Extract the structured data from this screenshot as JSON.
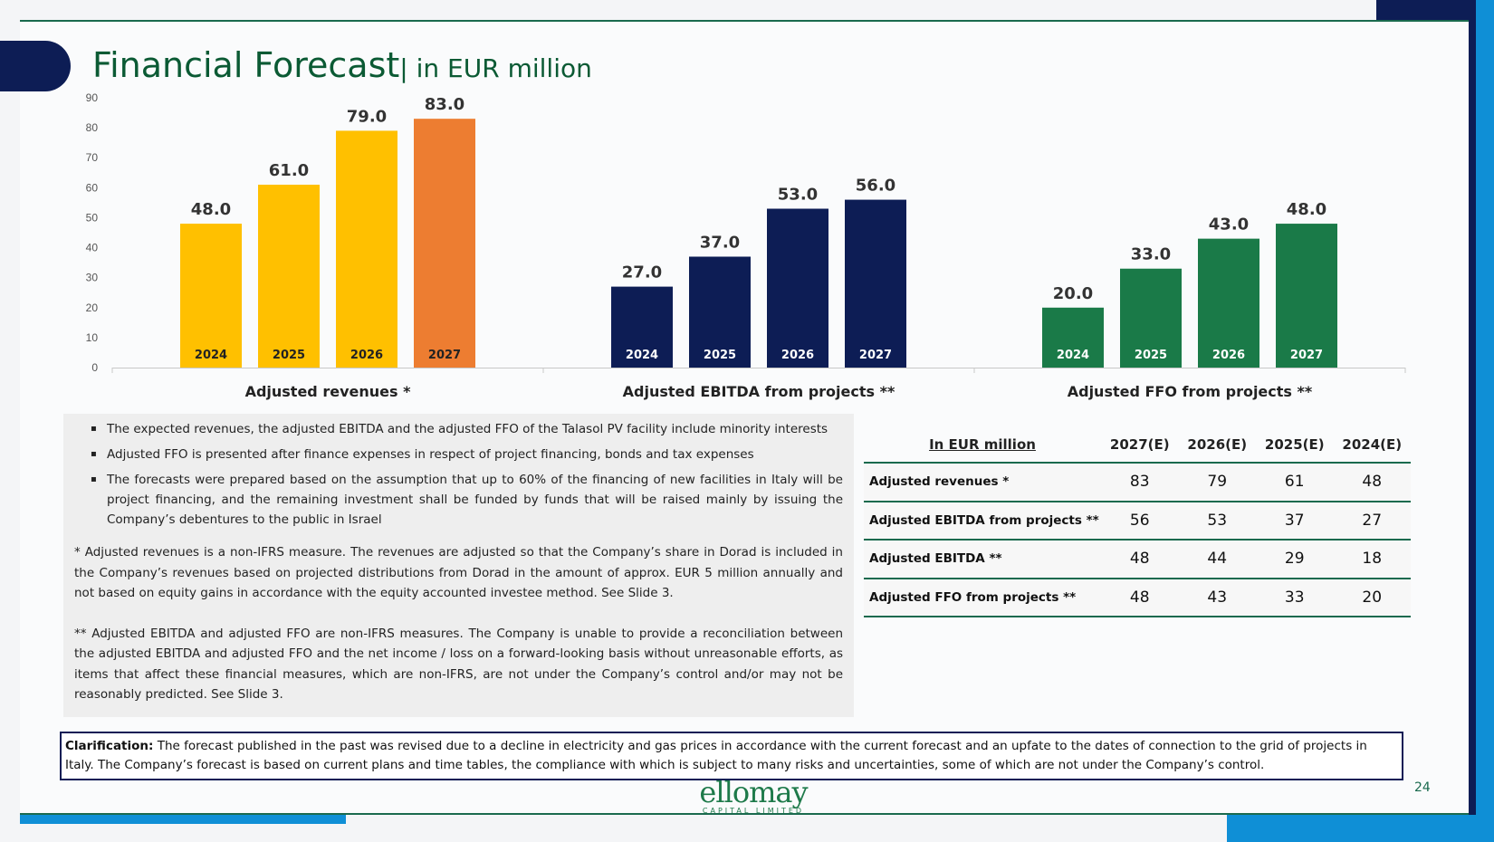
{
  "title": {
    "main": "Financial Forecast",
    "sub": "| in EUR million"
  },
  "chart_data": {
    "type": "bar",
    "ylim": [
      0,
      90
    ],
    "yticks": [
      0,
      10,
      20,
      30,
      40,
      50,
      60,
      70,
      80,
      90
    ],
    "groups": [
      {
        "name": "Adjusted revenues *",
        "categories": [
          "2024",
          "2025",
          "2026",
          "2027"
        ],
        "values": [
          48.0,
          61.0,
          79.0,
          83.0
        ],
        "value_labels": [
          "48.0",
          "61.0",
          "79.0",
          "83.0"
        ],
        "colors": [
          "#ffc000",
          "#ffc000",
          "#ffc000",
          "#ed7d31"
        ],
        "year_label_color": "#222222"
      },
      {
        "name": "Adjusted EBITDA from projects **",
        "categories": [
          "2024",
          "2025",
          "2026",
          "2027"
        ],
        "values": [
          27.0,
          37.0,
          53.0,
          56.0
        ],
        "value_labels": [
          "27.0",
          "37.0",
          "53.0",
          "56.0"
        ],
        "colors": [
          "#0d1d55",
          "#0d1d55",
          "#0d1d55",
          "#0d1d55"
        ],
        "year_label_color": "#ffffff"
      },
      {
        "name": "Adjusted FFO from projects **",
        "categories": [
          "2024",
          "2025",
          "2026",
          "2027"
        ],
        "values": [
          20.0,
          33.0,
          43.0,
          48.0
        ],
        "value_labels": [
          "20.0",
          "33.0",
          "43.0",
          "48.0"
        ],
        "colors": [
          "#1a7a48",
          "#1a7a48",
          "#1a7a48",
          "#1a7a48"
        ],
        "year_label_color": "#ffffff"
      }
    ]
  },
  "notes": {
    "bullets": [
      "The expected revenues, the adjusted EBITDA and the adjusted FFO of the Talasol PV facility include minority interests",
      "Adjusted FFO is presented after finance expenses in respect of project financing, bonds and tax expenses",
      "The forecasts were prepared based on the assumption that up to 60% of the financing of new facilities in Italy will be project financing, and the remaining investment shall be funded by funds that will be raised mainly by issuing the Company’s debentures to the public in Israel"
    ],
    "bullet_symbol": "▪",
    "footnote1": "* Adjusted revenues is a non-IFRS measure. The revenues are adjusted so that the Company’s share in Dorad is included in the Company’s revenues based on projected distributions from Dorad in the amount of approx. EUR 5 million annually and not based on equity gains in accordance with the equity accounted investee method. See Slide 3.",
    "footnote2": "** Adjusted EBITDA and adjusted FFO are non-IFRS measures. The Company is unable to provide a reconciliation between the adjusted EBITDA and adjusted FFO and the net income / loss on a forward-looking basis without unreasonable efforts, as items that affect these financial measures, which are non-IFRS, are not under the Company’s control and/or may not be reasonably predicted. See Slide 3."
  },
  "table": {
    "header": [
      "In EUR million",
      "2027(E)",
      "2026(E)",
      "2025(E)",
      "2024(E)"
    ],
    "rows": [
      [
        "Adjusted revenues *",
        "83",
        "79",
        "61",
        "48"
      ],
      [
        "Adjusted EBITDA from projects **",
        "56",
        "53",
        "37",
        "27"
      ],
      [
        "Adjusted EBITDA **",
        "48",
        "44",
        "29",
        "18"
      ],
      [
        "Adjusted FFO from projects **",
        "48",
        "43",
        "33",
        "20"
      ]
    ]
  },
  "clarification": {
    "label": "Clarification:",
    "text": " The forecast published in the past was revised due to a decline in electricity and gas prices in accordance with the current forecast and an upfate to the dates of connection to the grid of projects in Italy. The Company’s forecast is based on current plans and time tables, the compliance with which is subject to many risks and uncertainties, some of which are not under the Company’s control."
  },
  "logo": {
    "word": "ellomay",
    "sub": "CAPITAL LIMITED"
  },
  "page_number": "24",
  "colors": {
    "dark_navy": "#0d1d55",
    "green": "#1a6a4e",
    "accent_blue": "#0f8fd6"
  }
}
